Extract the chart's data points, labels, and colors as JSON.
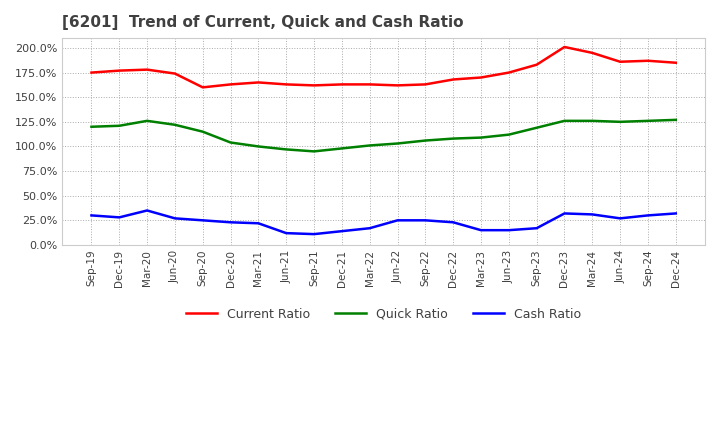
{
  "title": "[6201]  Trend of Current, Quick and Cash Ratio",
  "x_labels": [
    "Sep-19",
    "Dec-19",
    "Mar-20",
    "Jun-20",
    "Sep-20",
    "Dec-20",
    "Mar-21",
    "Jun-21",
    "Sep-21",
    "Dec-21",
    "Mar-22",
    "Jun-22",
    "Sep-22",
    "Dec-22",
    "Mar-23",
    "Jun-23",
    "Sep-23",
    "Dec-23",
    "Mar-24",
    "Jun-24",
    "Sep-24",
    "Dec-24"
  ],
  "current_ratio": [
    175,
    177,
    178,
    174,
    160,
    163,
    165,
    163,
    162,
    163,
    163,
    162,
    163,
    168,
    170,
    175,
    183,
    201,
    195,
    186,
    187,
    185
  ],
  "quick_ratio": [
    120,
    121,
    126,
    122,
    115,
    104,
    100,
    97,
    95,
    98,
    101,
    103,
    106,
    108,
    109,
    112,
    119,
    126,
    126,
    125,
    126,
    127
  ],
  "cash_ratio": [
    30,
    28,
    35,
    27,
    25,
    23,
    22,
    12,
    11,
    14,
    17,
    25,
    25,
    23,
    15,
    15,
    17,
    32,
    31,
    27,
    30,
    32
  ],
  "current_color": "#ff0000",
  "quick_color": "#008000",
  "cash_color": "#0000ff",
  "ylim": [
    0,
    210
  ],
  "yticks": [
    0,
    25,
    50,
    75,
    100,
    125,
    150,
    175,
    200
  ],
  "background_color": "#ffffff",
  "grid_color": "#aaaaaa",
  "title_color": "#404040",
  "tick_color": "#404040"
}
